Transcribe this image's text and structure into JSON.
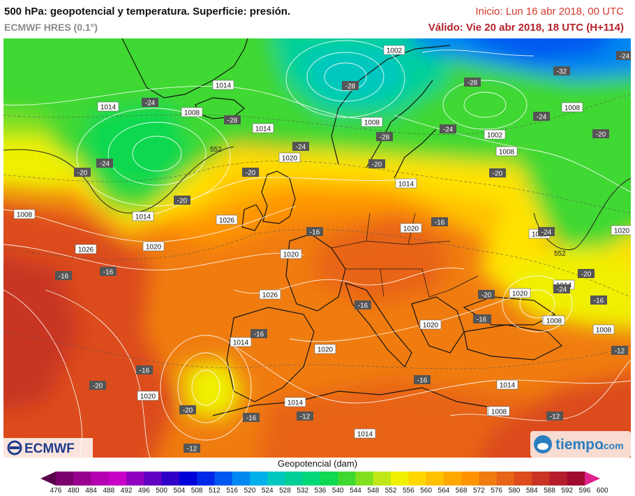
{
  "header": {
    "title": "500 hPa: geopotencial y temperatura. Superficie: presión.",
    "model": "ECMWF HRES (0.1°)",
    "init": "Inicio: Lun 16 abr 2018, 00 UTC",
    "valid": "Válido: Vie 20 abr 2018, 18 UTC (H+114)"
  },
  "logos": {
    "left": "ECMWF",
    "right": "tiempo",
    "right_suffix": ".com"
  },
  "legend": {
    "title": "Geopotencial (dam)",
    "values": [
      "476",
      "480",
      "484",
      "488",
      "492",
      "496",
      "500",
      "504",
      "508",
      "512",
      "516",
      "520",
      "524",
      "528",
      "532",
      "536",
      "540",
      "544",
      "548",
      "552",
      "556",
      "560",
      "564",
      "568",
      "572",
      "576",
      "580",
      "584",
      "588",
      "592",
      "596",
      "600"
    ],
    "colors": [
      "#5a004a",
      "#7a006e",
      "#980090",
      "#b400b0",
      "#c800c8",
      "#9000c0",
      "#6000c0",
      "#3000c8",
      "#0000d8",
      "#0028e8",
      "#0058f0",
      "#0088f0",
      "#00b0e8",
      "#00c8c0",
      "#00d098",
      "#00d878",
      "#10d850",
      "#40d830",
      "#80e020",
      "#c0e818",
      "#f0f000",
      "#ffd800",
      "#ffc000",
      "#ffa800",
      "#ff9400",
      "#f07c10",
      "#e86418",
      "#dc4c1c",
      "#c83424",
      "#b41c2c",
      "#a00a30",
      "#e0208c"
    ]
  },
  "isobar_labels": [
    {
      "text": "1002"
    },
    {
      "text": "1014"
    },
    {
      "text": "1014"
    },
    {
      "text": "1008"
    },
    {
      "text": "1014"
    },
    {
      "text": "1008"
    },
    {
      "text": "1008"
    },
    {
      "text": "1002"
    },
    {
      "text": "1008"
    },
    {
      "text": "1020"
    },
    {
      "text": "1014"
    },
    {
      "text": "1020"
    },
    {
      "text": "1014"
    },
    {
      "text": "1026"
    },
    {
      "text": "1026"
    },
    {
      "text": "1020"
    },
    {
      "text": "1020"
    },
    {
      "text": "1026"
    },
    {
      "text": "1008"
    },
    {
      "text": "1026"
    },
    {
      "text": "1020"
    },
    {
      "text": "1014"
    },
    {
      "text": "1020"
    },
    {
      "text": "1020"
    },
    {
      "text": "1020"
    },
    {
      "text": "1014"
    },
    {
      "text": "1008"
    },
    {
      "text": "1008"
    },
    {
      "text": "1020"
    },
    {
      "text": "1014"
    },
    {
      "text": "1014"
    },
    {
      "text": "1014"
    },
    {
      "text": "1008"
    },
    {
      "text": "1014"
    },
    {
      "text": "1008"
    }
  ],
  "temp_labels": [
    {
      "text": "-24"
    },
    {
      "text": "-28"
    },
    {
      "text": "-24"
    },
    {
      "text": "-28"
    },
    {
      "text": "-32"
    },
    {
      "text": "-28"
    },
    {
      "text": "-24"
    },
    {
      "text": "-28"
    },
    {
      "text": "-24"
    },
    {
      "text": "-24"
    },
    {
      "text": "-20"
    },
    {
      "text": "-20"
    },
    {
      "text": "-24"
    },
    {
      "text": "-20"
    },
    {
      "text": "-20"
    },
    {
      "text": "-20"
    },
    {
      "text": "-20"
    },
    {
      "text": "-24"
    },
    {
      "text": "-16"
    },
    {
      "text": "-16"
    },
    {
      "text": "-16"
    },
    {
      "text": "-20"
    },
    {
      "text": "-20"
    },
    {
      "text": "-24"
    },
    {
      "text": "-16"
    },
    {
      "text": "-16"
    },
    {
      "text": "-16"
    },
    {
      "text": "-16"
    },
    {
      "text": "-20"
    },
    {
      "text": "-16"
    },
    {
      "text": "-16"
    },
    {
      "text": "-12"
    },
    {
      "text": "-16"
    },
    {
      "text": "-12"
    },
    {
      "text": "-16"
    },
    {
      "text": "-16"
    },
    {
      "text": "-12"
    },
    {
      "text": "-20"
    },
    {
      "text": "-12"
    }
  ],
  "contour_labels": [
    {
      "text": "552"
    },
    {
      "text": "552"
    }
  ]
}
